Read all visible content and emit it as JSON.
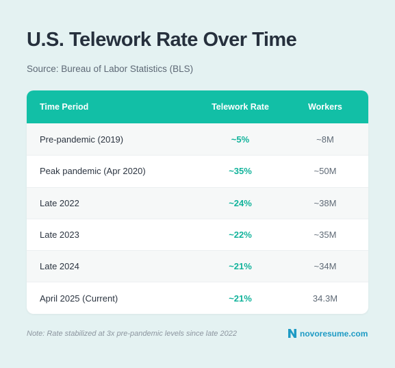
{
  "header": {
    "title": "U.S. Telework Rate Over Time",
    "source": "Source: Bureau of Labor Statistics (BLS)"
  },
  "table": {
    "columns": [
      "Time Period",
      "Telework Rate",
      "Workers"
    ],
    "rows": [
      {
        "period": "Pre-pandemic (2019)",
        "rate": "~5%",
        "workers": "~8M"
      },
      {
        "period": "Peak pandemic (Apr 2020)",
        "rate": "~35%",
        "workers": "~50M"
      },
      {
        "period": "Late 2022",
        "rate": "~24%",
        "workers": "~38M"
      },
      {
        "period": "Late 2023",
        "rate": "~22%",
        "workers": "~35M"
      },
      {
        "period": "Late 2024",
        "rate": "~21%",
        "workers": "~34M"
      },
      {
        "period": "April 2025 (Current)",
        "rate": "~21%",
        "workers": "34.3M"
      }
    ]
  },
  "footer": {
    "note": "Note: Rate stabilized at 3x pre-pandemic levels since late 2022",
    "brand_name": "novoresume.com",
    "brand_icon": "novoresume-logo-icon"
  },
  "colors": {
    "background": "#e4f2f2",
    "header_accent": "#12bfa6",
    "rate_text": "#12b39b",
    "brand": "#1d9ac4"
  }
}
